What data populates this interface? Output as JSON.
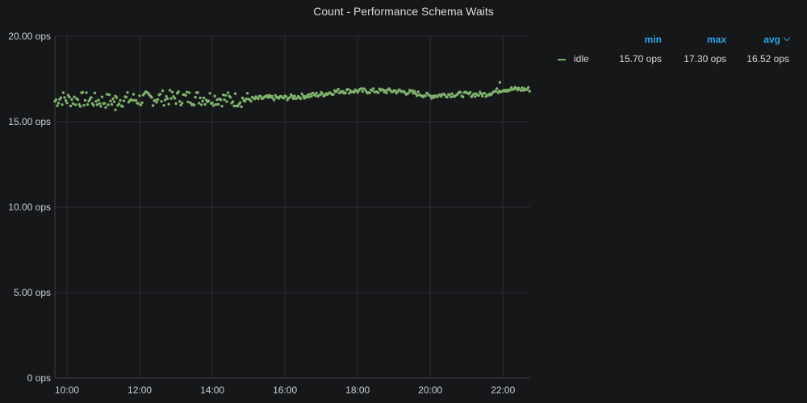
{
  "panel": {
    "title": "Count - Performance Schema Waits"
  },
  "legend": {
    "headers": {
      "min": "min",
      "max": "max",
      "avg": "avg"
    },
    "rows": [
      {
        "name": "idle",
        "color": "#7eb26d",
        "min": "15.70 ops",
        "max": "17.30 ops",
        "avg": "16.52 ops"
      }
    ]
  },
  "chart_data": {
    "type": "scatter",
    "title": "Count - Performance Schema Waits",
    "xlabel": "",
    "ylabel": "",
    "x_range": [
      "09:40",
      "22:45"
    ],
    "ylim": [
      0,
      20
    ],
    "yticks": [
      "0 ops",
      "5.00 ops",
      "10.00 ops",
      "15.00 ops",
      "20.00 ops"
    ],
    "xticks": [
      "10:00",
      "12:00",
      "14:00",
      "16:00",
      "18:00",
      "20:00",
      "22:00"
    ],
    "grid": true,
    "legend_position": "right",
    "series": [
      {
        "name": "idle",
        "color": "#7eb26d",
        "interval_minutes": 2,
        "start": "09:40",
        "points": [
          {
            "t": "09:40",
            "v": 16.2
          },
          {
            "t": "09:50",
            "v": 16.4
          },
          {
            "t": "10:00",
            "v": 16.3
          },
          {
            "t": "10:30",
            "v": 16.3
          },
          {
            "t": "11:00",
            "v": 16.2
          },
          {
            "t": "11:30",
            "v": 16.3
          },
          {
            "t": "12:00",
            "v": 16.3
          },
          {
            "t": "12:30",
            "v": 16.4
          },
          {
            "t": "13:00",
            "v": 16.4
          },
          {
            "t": "13:30",
            "v": 16.4
          },
          {
            "t": "14:00",
            "v": 16.4
          },
          {
            "t": "14:30",
            "v": 16.3
          },
          {
            "t": "15:00",
            "v": 16.3
          },
          {
            "t": "15:30",
            "v": 16.4
          },
          {
            "t": "16:00",
            "v": 16.4
          },
          {
            "t": "16:30",
            "v": 16.5
          },
          {
            "t": "17:00",
            "v": 16.6
          },
          {
            "t": "17:30",
            "v": 16.8
          },
          {
            "t": "18:00",
            "v": 16.8
          },
          {
            "t": "18:30",
            "v": 16.8
          },
          {
            "t": "19:00",
            "v": 16.8
          },
          {
            "t": "19:30",
            "v": 16.7
          },
          {
            "t": "20:00",
            "v": 16.5
          },
          {
            "t": "20:30",
            "v": 16.6
          },
          {
            "t": "21:00",
            "v": 16.6
          },
          {
            "t": "21:30",
            "v": 16.6
          },
          {
            "t": "22:00",
            "v": 16.9
          },
          {
            "t": "22:30",
            "v": 16.9
          },
          {
            "t": "22:45",
            "v": 16.9
          }
        ],
        "spread": [
          {
            "from": "09:40",
            "to": "15:00",
            "amount": 0.45
          },
          {
            "from": "15:00",
            "to": "22:45",
            "amount": 0.15
          }
        ],
        "min_point": {
          "t": "11:20",
          "v": 15.7
        },
        "max_point": {
          "t": "21:55",
          "v": 17.3
        }
      }
    ]
  }
}
